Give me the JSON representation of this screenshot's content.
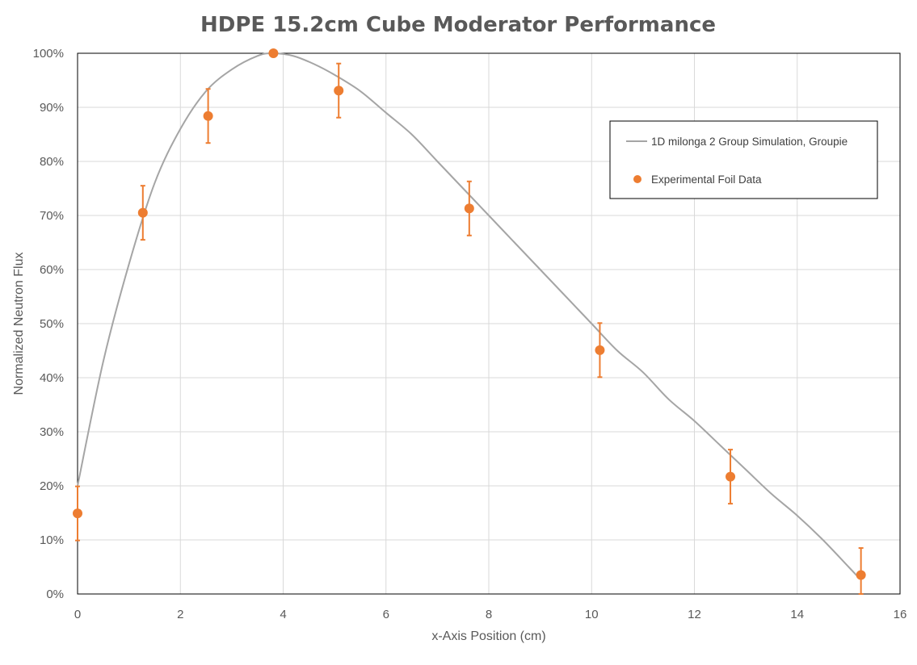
{
  "chart_data": {
    "type": "scatter",
    "title": "HDPE 15.2cm Cube Moderator Performance",
    "xlabel": "x-Axis Position (cm)",
    "ylabel": "Normalized Neutron Flux",
    "xlim": [
      0,
      16
    ],
    "ylim": [
      0,
      1
    ],
    "x_ticks": [
      0,
      2,
      4,
      6,
      8,
      10,
      12,
      14,
      16
    ],
    "x_tick_labels": [
      "0",
      "2",
      "4",
      "6",
      "8",
      "10",
      "12",
      "14",
      "16"
    ],
    "y_ticks": [
      0,
      0.1,
      0.2,
      0.3,
      0.4,
      0.5,
      0.6,
      0.7,
      0.8,
      0.9,
      1.0
    ],
    "y_tick_labels": [
      "0%",
      "10%",
      "20%",
      "30%",
      "40%",
      "50%",
      "60%",
      "70%",
      "80%",
      "90%",
      "100%"
    ],
    "grid": true,
    "legend_position": "top-right",
    "series": [
      {
        "name": "1D milonga 2 Group Simulation, Groupie",
        "kind": "line",
        "color": "#a5a5a5",
        "x": [
          0,
          0.5,
          1.0,
          1.5,
          2.0,
          2.5,
          3.0,
          3.5,
          3.8,
          4.2,
          4.6,
          5.0,
          5.5,
          6.0,
          6.5,
          7.0,
          7.5,
          8.0,
          8.5,
          9.0,
          9.5,
          10.0,
          10.5,
          11.0,
          11.5,
          12.0,
          12.5,
          13.0,
          13.5,
          14.0,
          14.5,
          15.0,
          15.2
        ],
        "y": [
          0.2,
          0.43,
          0.61,
          0.76,
          0.86,
          0.93,
          0.97,
          0.995,
          1.0,
          0.995,
          0.98,
          0.96,
          0.93,
          0.89,
          0.85,
          0.8,
          0.75,
          0.7,
          0.65,
          0.6,
          0.55,
          0.5,
          0.45,
          0.41,
          0.36,
          0.32,
          0.275,
          0.23,
          0.185,
          0.145,
          0.1,
          0.05,
          0.03
        ]
      },
      {
        "name": "Experimental Foil Data",
        "kind": "points",
        "color": "#ed7d31",
        "x": [
          0,
          1.27,
          2.54,
          3.81,
          5.08,
          7.62,
          10.16,
          12.7,
          15.24
        ],
        "y": [
          0.149,
          0.705,
          0.884,
          1.0,
          0.931,
          0.713,
          0.451,
          0.217,
          0.035
        ],
        "error": [
          0.05,
          0.05,
          0.05,
          0,
          0.05,
          0.05,
          0.05,
          0.05,
          0.05
        ]
      }
    ]
  }
}
